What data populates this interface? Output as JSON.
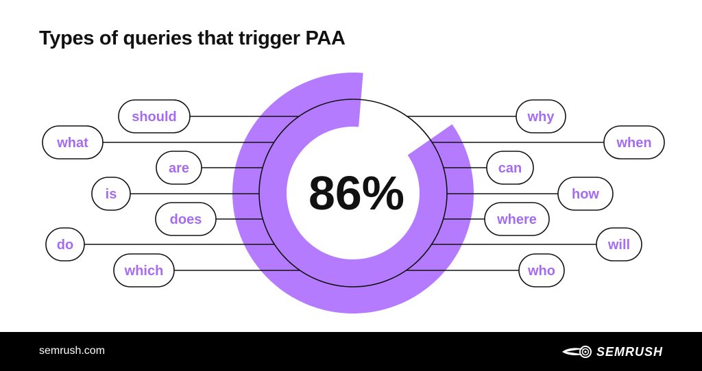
{
  "title": "Types of queries that trigger PAA",
  "chart_data": {
    "type": "donut",
    "value": 86,
    "value_label": "86%",
    "max": 100,
    "colors": {
      "arc": "#b57bff",
      "text": "#111111",
      "label_text": "#a56cf2",
      "line": "#111111"
    },
    "left_labels": [
      "should",
      "what",
      "are",
      "is",
      "does",
      "do",
      "which"
    ],
    "right_labels": [
      "why",
      "when",
      "can",
      "how",
      "where",
      "will",
      "who"
    ]
  },
  "footer": {
    "url": "semrush.com",
    "brand": "SEMRUSH"
  }
}
